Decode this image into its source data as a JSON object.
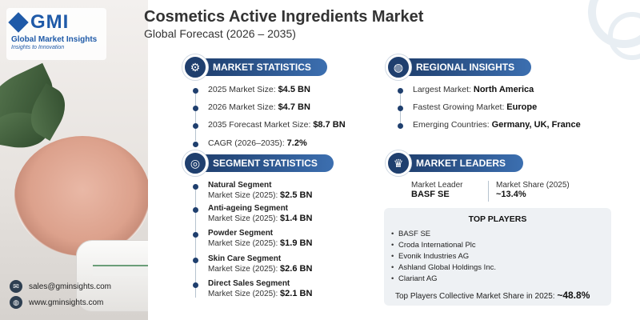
{
  "brand": {
    "logo_text": "GMI",
    "name": "Global Market Insights",
    "tagline": "Insights to Innovation"
  },
  "header": {
    "title": "Cosmetics Active Ingredients Market",
    "subtitle": "Global Forecast (2026 – 2035)"
  },
  "market_statistics": {
    "heading": "MARKET STATISTICS",
    "icon": "chart-gear-icon",
    "items": [
      {
        "label": "2025 Market Size:",
        "value": "$4.5 BN"
      },
      {
        "label": "2026 Market Size:",
        "value": "$4.7 BN"
      },
      {
        "label": "2035 Forecast Market Size:",
        "value": "$8.7 BN"
      },
      {
        "label": "CAGR (2026–2035):",
        "value": "7.2%"
      }
    ]
  },
  "regional_insights": {
    "heading": "REGIONAL INSIGHTS",
    "icon": "globe-icon",
    "items": [
      {
        "label": "Largest Market:",
        "value": "North America"
      },
      {
        "label": "Fastest Growing Market:",
        "value": "Europe"
      },
      {
        "label": "Emerging Countries:",
        "value": "Germany, UK, France"
      }
    ]
  },
  "segment_statistics": {
    "heading": "SEGMENT STATISTICS",
    "icon": "target-icon",
    "items": [
      {
        "name": "Natural Segment",
        "label": "Market Size (2025):",
        "value": "$2.5 BN"
      },
      {
        "name": "Anti-ageing Segment",
        "label": "Market Size (2025):",
        "value": "$1.4 BN"
      },
      {
        "name": "Powder Segment",
        "label": "Market Size (2025):",
        "value": "$1.9 BN"
      },
      {
        "name": "Skin Care Segment",
        "label": "Market Size (2025):",
        "value": "$2.6 BN"
      },
      {
        "name": "Direct Sales Segment",
        "label": "Market Size (2025):",
        "value": "$2.1 BN"
      }
    ]
  },
  "market_leaders": {
    "heading": "MARKET LEADERS",
    "icon": "trophy-chart-icon",
    "leader_label": "Market Leader",
    "leader_value": "BASF SE",
    "share_label": "Market Share (2025)",
    "share_value": "~13.4%"
  },
  "top_players": {
    "heading": "TOP PLAYERS",
    "items": [
      "BASF SE",
      "Croda International Plc",
      "Evonik Industries AG",
      "Ashland Global Holdings Inc.",
      "Clariant AG"
    ],
    "collective_label": "Top Players Collective Market Share in 2025:",
    "collective_value": "~48.8%"
  },
  "contact": {
    "email": "sales@gminsights.com",
    "website": "www.gminsights.com"
  },
  "colors": {
    "navy": "#1f3f6e",
    "blue": "#1f5aa8",
    "panel": "#eef1f4"
  }
}
